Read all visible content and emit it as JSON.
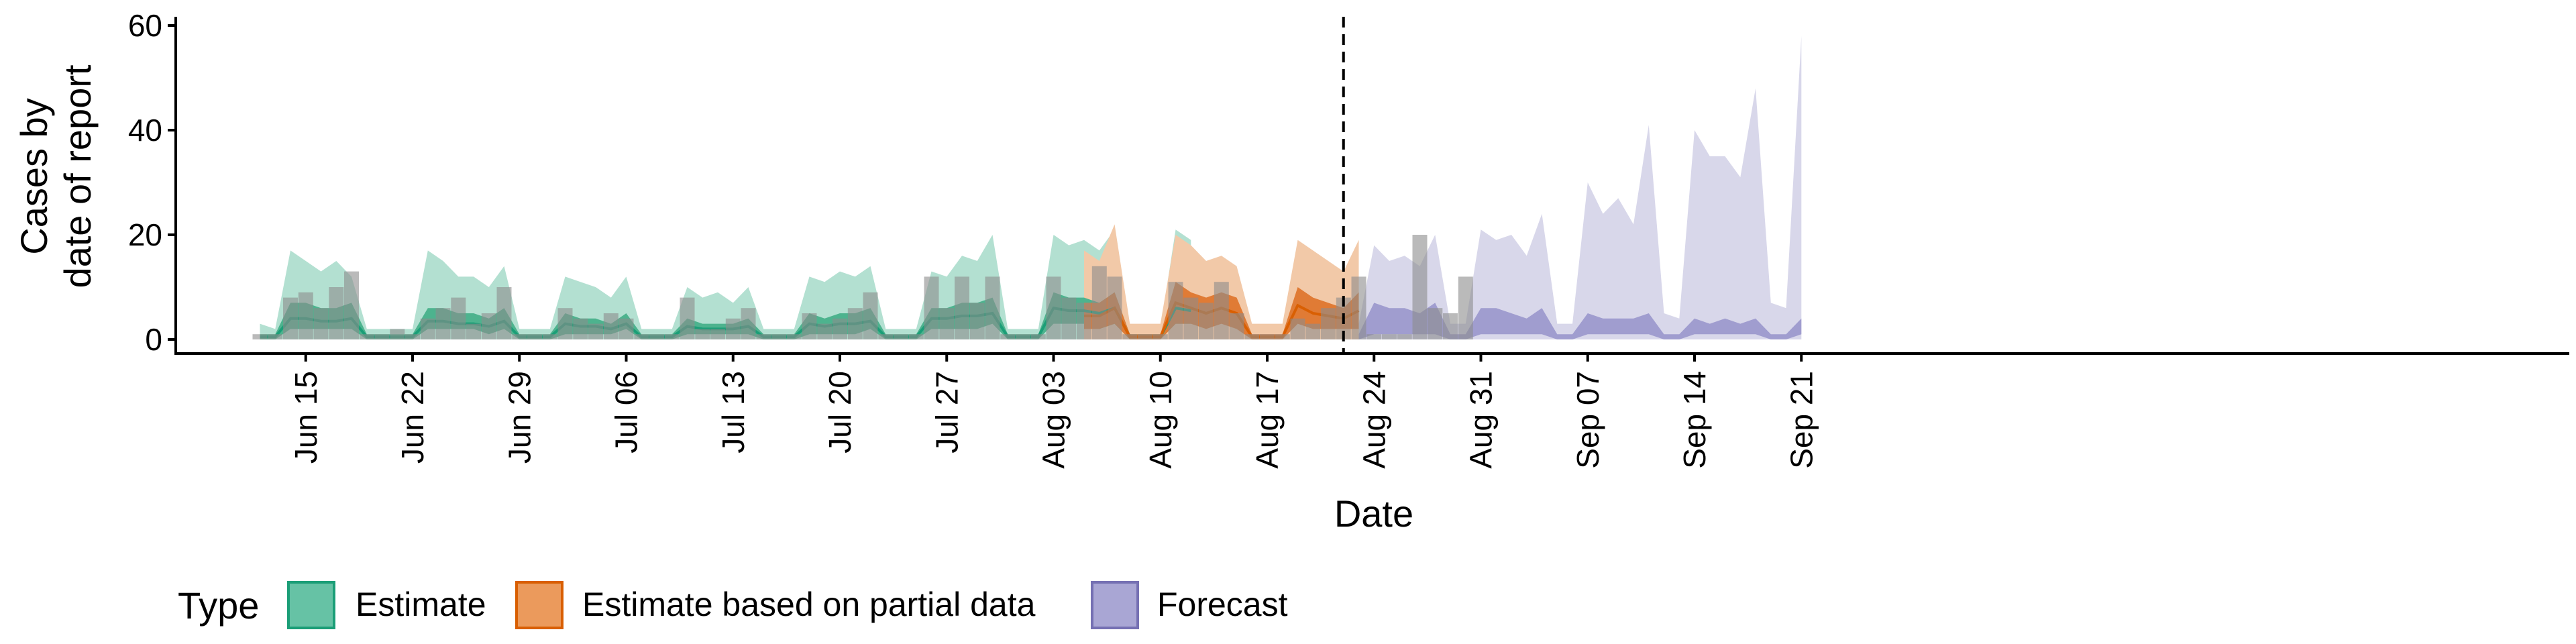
{
  "chart_data": {
    "type": "area",
    "ylabel_lines": [
      "Cases by",
      "date of report"
    ],
    "xlabel": "Date",
    "ylim": [
      -2,
      61
    ],
    "y_ticks": [
      0,
      20,
      40,
      60
    ],
    "x_range": [
      "2020-06-06",
      "2020-09-28"
    ],
    "x_ticks": [
      {
        "date": "2020-06-15",
        "label": "Jun 15"
      },
      {
        "date": "2020-06-22",
        "label": "Jun 22"
      },
      {
        "date": "2020-06-29",
        "label": "Jun 29"
      },
      {
        "date": "2020-07-06",
        "label": "Jul 06"
      },
      {
        "date": "2020-07-13",
        "label": "Jul 13"
      },
      {
        "date": "2020-07-20",
        "label": "Jul 20"
      },
      {
        "date": "2020-07-27",
        "label": "Jul 27"
      },
      {
        "date": "2020-08-03",
        "label": "Aug 03"
      },
      {
        "date": "2020-08-10",
        "label": "Aug 10"
      },
      {
        "date": "2020-08-17",
        "label": "Aug 17"
      },
      {
        "date": "2020-08-24",
        "label": "Aug 24"
      },
      {
        "date": "2020-08-31",
        "label": "Aug 31"
      },
      {
        "date": "2020-09-07",
        "label": "Sep 07"
      },
      {
        "date": "2020-09-14",
        "label": "Sep 14"
      },
      {
        "date": "2020-09-21",
        "label": "Sep 21"
      }
    ],
    "forecast_date": "2020-08-22",
    "legend": {
      "title": "Type",
      "position": "bottom",
      "items": [
        {
          "label": "Estimate",
          "fill": "#66c2a5",
          "stroke": "#1b9e77"
        },
        {
          "label": "Estimate based on partial data",
          "fill": "#eb9a5c",
          "stroke": "#d95f02"
        },
        {
          "label": "Forecast",
          "fill": "#a9a6d4",
          "stroke": "#7570b3"
        }
      ]
    },
    "colors": {
      "estimate_outer": "#b3e0d1",
      "estimate_inner": "#4db38e",
      "estimate_line": "#1b9e77",
      "partial_outer": "#f2c9a8",
      "partial_inner": "#e07b35",
      "partial_line": "#d95f02",
      "forecast_outer": "#d8d7ea",
      "forecast_inner": "#a09dcf",
      "bars": "#8c8c8c"
    },
    "series": [
      {
        "type": "Estimate",
        "start": "2020-06-12",
        "upper90": [
          3,
          2,
          17,
          15,
          13,
          15,
          12,
          2,
          2,
          2,
          2,
          17,
          15,
          12,
          12,
          10,
          14,
          2,
          2,
          2,
          12,
          11,
          10,
          8,
          12,
          2,
          2,
          2,
          10,
          8,
          9,
          7,
          10,
          2,
          2,
          2,
          12,
          11,
          13,
          12,
          14,
          2,
          2,
          2,
          13,
          12,
          16,
          15,
          20,
          2,
          2,
          2,
          20,
          18,
          19,
          17,
          21,
          2,
          2,
          2,
          21,
          19
        ],
        "lower90": [
          0,
          0,
          0,
          0,
          0,
          0,
          0,
          0,
          0,
          0,
          0,
          0,
          0,
          0,
          0,
          0,
          0,
          0,
          0,
          0,
          0,
          0,
          0,
          0,
          0,
          0,
          0,
          0,
          0,
          0,
          0,
          0,
          0,
          0,
          0,
          0,
          0,
          0,
          0,
          0,
          0,
          0,
          0,
          0,
          0,
          0,
          0,
          0,
          0,
          0,
          0,
          0,
          0,
          0,
          0,
          0,
          0,
          0,
          0,
          0,
          0,
          0
        ],
        "upper50": [
          1,
          1,
          7,
          7,
          6,
          6,
          7,
          1,
          1,
          1,
          1,
          6,
          6,
          5,
          5,
          4,
          6,
          1,
          1,
          1,
          5,
          4,
          4,
          3,
          5,
          1,
          1,
          1,
          4,
          3,
          3,
          3,
          4,
          1,
          1,
          1,
          5,
          4,
          5,
          5,
          6,
          1,
          1,
          1,
          6,
          6,
          7,
          7,
          8,
          1,
          1,
          1,
          9,
          8,
          8,
          7,
          9,
          1,
          1,
          1,
          9,
          8
        ],
        "lower50": [
          0,
          0,
          2,
          2,
          2,
          2,
          2,
          0,
          0,
          0,
          0,
          2,
          2,
          2,
          2,
          1,
          2,
          0,
          0,
          0,
          1,
          1,
          1,
          1,
          2,
          0,
          0,
          0,
          1,
          1,
          1,
          1,
          1,
          0,
          0,
          0,
          1,
          1,
          1,
          1,
          2,
          0,
          0,
          0,
          2,
          2,
          2,
          2,
          3,
          0,
          0,
          0,
          3,
          3,
          3,
          2,
          3,
          0,
          0,
          0,
          3,
          3
        ],
        "median": [
          0.5,
          0.5,
          4,
          4,
          3.5,
          3.5,
          4,
          0.5,
          0.5,
          0.5,
          0.5,
          3.5,
          3.5,
          3,
          3,
          2.5,
          3.5,
          0.5,
          0.5,
          0.5,
          3,
          2.5,
          2.5,
          2,
          3,
          0.5,
          0.5,
          0.5,
          2.5,
          2,
          2,
          2,
          2.5,
          0.5,
          0.5,
          0.5,
          3,
          2.5,
          3,
          3,
          3.5,
          0.5,
          0.5,
          0.5,
          4,
          4,
          4.5,
          4.5,
          5,
          0.5,
          0.5,
          0.5,
          6,
          5.5,
          5.5,
          5,
          6,
          0.5,
          0.5,
          0.5,
          6,
          5.5
        ]
      },
      {
        "type": "Estimate based on partial data",
        "start": "2020-08-05",
        "upper90": [
          17,
          15,
          22,
          3,
          3,
          3,
          20,
          18,
          15,
          16,
          14,
          3,
          3,
          3,
          19,
          17,
          15,
          13,
          19
        ],
        "lower90": [
          0,
          0,
          0,
          0,
          0,
          0,
          0,
          0,
          0,
          0,
          0,
          0,
          0,
          0,
          0,
          0,
          0,
          0,
          0
        ],
        "upper50": [
          7,
          7,
          9,
          1,
          1,
          1,
          11,
          9,
          8,
          9,
          8,
          1,
          1,
          1,
          10,
          8,
          7,
          6,
          9
        ],
        "lower50": [
          2,
          2,
          3,
          0,
          0,
          0,
          3,
          3,
          2,
          3,
          2,
          0,
          0,
          0,
          3,
          2,
          2,
          2,
          2
        ],
        "median": [
          4.5,
          4.5,
          6,
          0.5,
          0.5,
          0.5,
          7,
          6,
          5,
          6,
          5,
          0.5,
          0.5,
          0.5,
          6.5,
          5,
          4.5,
          4,
          5.5
        ]
      },
      {
        "type": "Forecast",
        "start": "2020-08-23",
        "upper90": [
          3,
          18,
          15,
          16,
          14,
          20,
          3,
          3,
          21,
          19,
          20,
          16,
          24,
          3,
          3,
          30,
          24,
          27,
          22,
          41,
          5,
          4,
          40,
          35,
          35,
          31,
          48,
          7,
          6,
          58
        ],
        "lower90": [
          0,
          0,
          0,
          0,
          0,
          0,
          0,
          0,
          0,
          0,
          0,
          0,
          0,
          0,
          0,
          0,
          0,
          0,
          0,
          0,
          0,
          0,
          0,
          0,
          0,
          0,
          0,
          0,
          0,
          0
        ],
        "upper50": [
          1,
          7,
          6,
          6,
          5,
          7,
          1,
          1,
          6,
          6,
          5,
          4,
          6,
          1,
          1,
          5,
          4,
          4,
          4,
          5,
          1,
          1,
          4,
          3,
          4,
          3,
          4,
          1,
          1,
          4
        ],
        "lower50": [
          0,
          1,
          1,
          1,
          1,
          1,
          0,
          0,
          1,
          1,
          1,
          1,
          1,
          0,
          0,
          1,
          1,
          1,
          1,
          1,
          0,
          0,
          1,
          1,
          1,
          1,
          1,
          0,
          0,
          1
        ],
        "median": [
          0.5,
          4,
          3.5,
          3.5,
          3,
          4,
          0.5,
          0.5,
          3.5,
          3.5,
          3,
          2.5,
          3.5,
          0.5,
          0.5,
          3,
          2.5,
          2.5,
          2.5,
          3,
          0.5,
          0.5,
          2.5,
          2,
          2.5,
          2,
          2.5,
          0.5,
          0.5,
          2.5
        ]
      }
    ],
    "observed": {
      "start": "2020-06-12",
      "values": [
        1,
        1,
        8,
        9,
        6,
        10,
        13,
        1,
        1,
        2,
        1,
        4,
        6,
        8,
        3,
        5,
        10,
        1,
        1,
        1,
        6,
        4,
        3,
        5,
        4,
        1,
        1,
        1,
        8,
        2,
        2,
        4,
        6,
        1,
        1,
        1,
        5,
        3,
        4,
        6,
        9,
        1,
        1,
        1,
        12,
        6,
        12,
        7,
        12,
        1,
        1,
        1,
        12,
        8,
        7,
        14,
        12,
        1,
        1,
        1,
        11,
        8,
        7,
        11,
        5,
        1,
        1,
        1,
        4,
        3,
        6,
        8,
        12,
        1,
        1,
        1,
        20,
        6,
        5,
        12
      ]
    }
  }
}
